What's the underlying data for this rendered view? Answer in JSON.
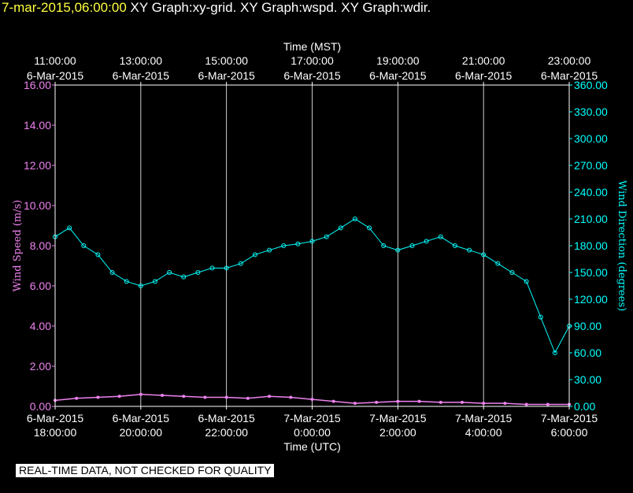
{
  "header": {
    "timestamp": "7-mar-2015,06:00:00",
    "graphs": "XY Graph:xy-grid.  XY Graph:wspd.  XY Graph:wdir."
  },
  "footer": {
    "note": "REAL-TIME DATA, NOT CHECKED FOR QUALITY"
  },
  "colors": {
    "background": "#000000",
    "speed": "#ee82ee",
    "direction": "#00ffff",
    "grid": "#ffffff",
    "timestamp": "#ffff40"
  },
  "chart_data": {
    "type": "scatter",
    "top_axis": {
      "label": "Time (MST)",
      "ticks": [
        {
          "time": "11:00:00",
          "date": "6-Mar-2015"
        },
        {
          "time": "13:00:00",
          "date": "6-Mar-2015"
        },
        {
          "time": "15:00:00",
          "date": "6-Mar-2015"
        },
        {
          "time": "17:00:00",
          "date": "6-Mar-2015"
        },
        {
          "time": "19:00:00",
          "date": "6-Mar-2015"
        },
        {
          "time": "21:00:00",
          "date": "6-Mar-2015"
        },
        {
          "time": "23:00:00",
          "date": "6-Mar-2015"
        }
      ]
    },
    "bottom_axis": {
      "label": "Time (UTC)",
      "ticks": [
        {
          "date": "6-Mar-2015",
          "time": "18:00:00"
        },
        {
          "date": "6-Mar-2015",
          "time": "20:00:00"
        },
        {
          "date": "6-Mar-2015",
          "time": "22:00:00"
        },
        {
          "date": "7-Mar-2015",
          "time": "0:00:00"
        },
        {
          "date": "7-Mar-2015",
          "time": "2:00:00"
        },
        {
          "date": "7-Mar-2015",
          "time": "4:00:00"
        },
        {
          "date": "7-Mar-2015",
          "time": "6:00:00"
        }
      ],
      "range_utc": [
        "2015-03-06T18:00:00",
        "2015-03-07T06:00:00"
      ]
    },
    "left_axis": {
      "label": "Wind Speed (m/s)",
      "ticks": [
        "0.00",
        "2.00",
        "4.00",
        "6.00",
        "8.00",
        "10.00",
        "12.00",
        "14.00",
        "16.00"
      ],
      "ylim": [
        0,
        16
      ]
    },
    "right_axis": {
      "label": "Wind Direction (degrees)",
      "ticks": [
        "0.00",
        "30.00",
        "60.00",
        "90.00",
        "120.00",
        "150.00",
        "180.00",
        "210.00",
        "240.00",
        "270.00",
        "300.00",
        "330.00",
        "360.00"
      ],
      "ylim": [
        0,
        360
      ]
    },
    "grid": "vertical",
    "series": [
      {
        "name": "Wind Speed (m/s)",
        "axis": "left",
        "points": [
          [
            "2015-03-06T18:00",
            0.3
          ],
          [
            "2015-03-06T18:30",
            0.4
          ],
          [
            "2015-03-06T19:00",
            0.45
          ],
          [
            "2015-03-06T19:30",
            0.5
          ],
          [
            "2015-03-06T20:00",
            0.6
          ],
          [
            "2015-03-06T20:30",
            0.55
          ],
          [
            "2015-03-06T21:00",
            0.5
          ],
          [
            "2015-03-06T21:30",
            0.45
          ],
          [
            "2015-03-06T22:00",
            0.45
          ],
          [
            "2015-03-06T22:30",
            0.4
          ],
          [
            "2015-03-06T23:00",
            0.5
          ],
          [
            "2015-03-06T23:30",
            0.45
          ],
          [
            "2015-03-07T00:00",
            0.35
          ],
          [
            "2015-03-07T00:30",
            0.25
          ],
          [
            "2015-03-07T01:00",
            0.15
          ],
          [
            "2015-03-07T01:30",
            0.2
          ],
          [
            "2015-03-07T02:00",
            0.25
          ],
          [
            "2015-03-07T02:30",
            0.25
          ],
          [
            "2015-03-07T03:00",
            0.2
          ],
          [
            "2015-03-07T03:30",
            0.2
          ],
          [
            "2015-03-07T04:00",
            0.15
          ],
          [
            "2015-03-07T04:30",
            0.15
          ],
          [
            "2015-03-07T05:00",
            0.1
          ],
          [
            "2015-03-07T05:30",
            0.1
          ],
          [
            "2015-03-07T06:00",
            0.1
          ]
        ]
      },
      {
        "name": "Wind Direction (degrees)",
        "axis": "right",
        "points": [
          [
            "2015-03-06T18:00",
            190
          ],
          [
            "2015-03-06T18:20",
            200
          ],
          [
            "2015-03-06T18:40",
            180
          ],
          [
            "2015-03-06T19:00",
            170
          ],
          [
            "2015-03-06T19:20",
            150
          ],
          [
            "2015-03-06T19:40",
            140
          ],
          [
            "2015-03-06T20:00",
            135
          ],
          [
            "2015-03-06T20:20",
            140
          ],
          [
            "2015-03-06T20:40",
            150
          ],
          [
            "2015-03-06T21:00",
            145
          ],
          [
            "2015-03-06T21:20",
            150
          ],
          [
            "2015-03-06T21:40",
            155
          ],
          [
            "2015-03-06T22:00",
            155
          ],
          [
            "2015-03-06T22:20",
            160
          ],
          [
            "2015-03-06T22:40",
            170
          ],
          [
            "2015-03-06T23:00",
            175
          ],
          [
            "2015-03-06T23:20",
            180
          ],
          [
            "2015-03-06T23:40",
            182
          ],
          [
            "2015-03-07T00:00",
            185
          ],
          [
            "2015-03-07T00:20",
            190
          ],
          [
            "2015-03-07T00:40",
            200
          ],
          [
            "2015-03-07T01:00",
            210
          ],
          [
            "2015-03-07T01:20",
            200
          ],
          [
            "2015-03-07T01:40",
            180
          ],
          [
            "2015-03-07T02:00",
            175
          ],
          [
            "2015-03-07T02:20",
            180
          ],
          [
            "2015-03-07T02:40",
            185
          ],
          [
            "2015-03-07T03:00",
            190
          ],
          [
            "2015-03-07T03:20",
            180
          ],
          [
            "2015-03-07T03:40",
            175
          ],
          [
            "2015-03-07T04:00",
            170
          ],
          [
            "2015-03-07T04:20",
            160
          ],
          [
            "2015-03-07T04:40",
            150
          ],
          [
            "2015-03-07T05:00",
            140
          ],
          [
            "2015-03-07T05:20",
            100
          ],
          [
            "2015-03-07T05:40",
            60
          ],
          [
            "2015-03-07T06:00",
            90
          ]
        ]
      }
    ]
  }
}
